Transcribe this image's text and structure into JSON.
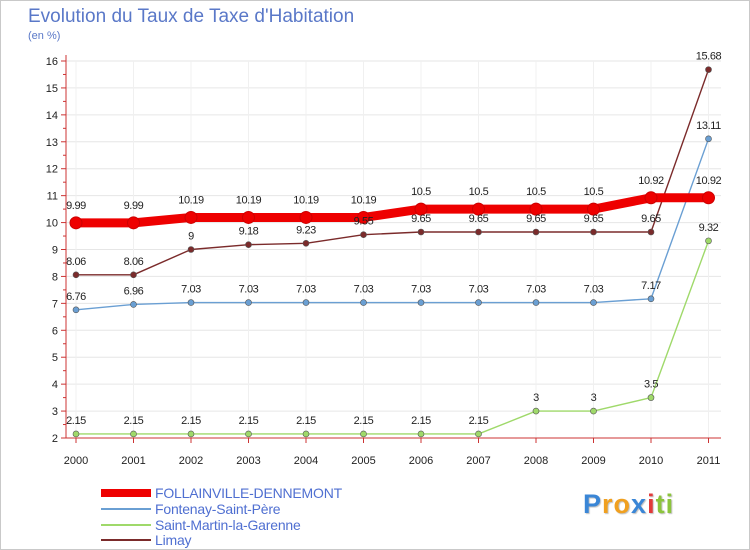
{
  "chart_data": {
    "type": "line",
    "title": "Evolution du Taux de Taxe d'Habitation",
    "unit_label": "(en %)",
    "xlabel": "",
    "ylabel": "",
    "x": [
      2000,
      2001,
      2002,
      2003,
      2004,
      2005,
      2006,
      2007,
      2008,
      2009,
      2010,
      2011
    ],
    "x_labels": [
      "2000",
      "2001",
      "2002",
      "2003",
      "2004",
      "2005",
      "2006",
      "2007",
      "2008",
      "2009",
      "2010",
      "2011"
    ],
    "ylim": [
      2,
      16
    ],
    "y_ticks": [
      2,
      3,
      4,
      5,
      6,
      7,
      8,
      9,
      10,
      11,
      12,
      13,
      14,
      15,
      16
    ],
    "grid": "horizontal",
    "legend_position": "bottom-left",
    "series": [
      {
        "name": "FOLLAINVILLE-DENNEMONT",
        "color": "#ee0000",
        "emphasis": "bold",
        "values": [
          9.99,
          9.99,
          10.19,
          10.19,
          10.19,
          10.19,
          10.5,
          10.5,
          10.5,
          10.5,
          10.92,
          10.92
        ],
        "labels": [
          "9.99",
          "9.99",
          "10.19",
          "10.19",
          "10.19",
          "10.19",
          "10.5",
          "10.5",
          "10.5",
          "10.5",
          "10.92",
          "10.92"
        ]
      },
      {
        "name": "Fontenay-Saint-Père",
        "color": "#6a9fd3",
        "emphasis": "normal",
        "values": [
          6.76,
          6.96,
          7.03,
          7.03,
          7.03,
          7.03,
          7.03,
          7.03,
          7.03,
          7.03,
          7.17,
          13.11
        ],
        "labels": [
          "6.76",
          "6.96",
          "7.03",
          "7.03",
          "7.03",
          "7.03",
          "7.03",
          "7.03",
          "7.03",
          "7.03",
          "7.17",
          "13.11"
        ]
      },
      {
        "name": "Saint-Martin-la-Garenne",
        "color": "#9fd96a",
        "emphasis": "normal",
        "values": [
          2.15,
          2.15,
          2.15,
          2.15,
          2.15,
          2.15,
          2.15,
          2.15,
          3,
          3,
          3.5,
          9.32
        ],
        "labels": [
          "2.15",
          "2.15",
          "2.15",
          "2.15",
          "2.15",
          "2.15",
          "2.15",
          "2.15",
          "3",
          "3",
          "3.5",
          "9.32"
        ]
      },
      {
        "name": "Limay",
        "color": "#7b2b2b",
        "emphasis": "normal",
        "values": [
          8.06,
          8.06,
          9,
          9.18,
          9.23,
          9.55,
          9.65,
          9.65,
          9.65,
          9.65,
          9.65,
          15.68
        ],
        "labels": [
          "8.06",
          "8.06",
          "9",
          "9.18",
          "9.23",
          "9.55",
          "9.65",
          "9.65",
          "9.65",
          "9.65",
          "9.65",
          "15.68"
        ]
      }
    ]
  },
  "brand": {
    "text": "Proxiti",
    "letters": [
      "P",
      "r",
      "o",
      "x",
      "i",
      "t",
      "i"
    ],
    "letter_colors": [
      "#3a86d6",
      "#f0a020",
      "#f0a020",
      "#3a86d6",
      "#e23a3a",
      "#8cc43c",
      "#8cc43c"
    ]
  }
}
